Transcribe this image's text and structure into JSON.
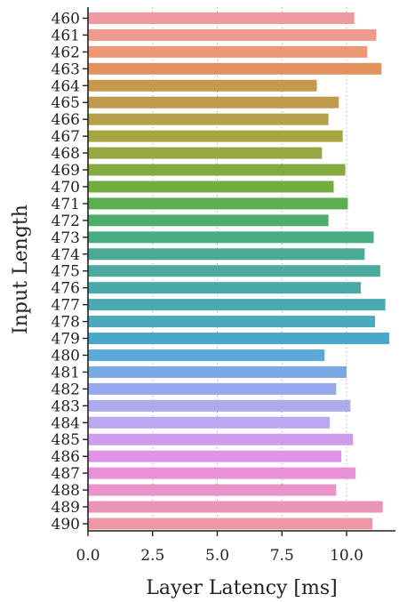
{
  "chart_data": {
    "type": "bar",
    "orientation": "horizontal",
    "xlabel": "Layer Latency [ms]",
    "ylabel": "Input Length",
    "xlim": [
      0,
      12
    ],
    "xticks": [
      "0.0",
      "2.5",
      "5.0",
      "7.5",
      "10.0"
    ],
    "xtick_values": [
      0,
      2.5,
      5,
      7.5,
      10
    ],
    "grid": "vertical",
    "categories": [
      "460",
      "461",
      "462",
      "463",
      "464",
      "465",
      "466",
      "467",
      "468",
      "469",
      "470",
      "471",
      "472",
      "473",
      "474",
      "475",
      "476",
      "477",
      "478",
      "479",
      "480",
      "481",
      "482",
      "483",
      "484",
      "485",
      "486",
      "487",
      "488",
      "489",
      "490"
    ],
    "values": [
      10.3,
      11.15,
      10.8,
      11.35,
      8.85,
      9.7,
      9.3,
      9.85,
      9.05,
      9.95,
      9.5,
      10.05,
      9.3,
      11.05,
      10.7,
      11.3,
      10.55,
      11.5,
      11.1,
      11.65,
      9.15,
      10.0,
      9.6,
      10.15,
      9.35,
      10.25,
      9.8,
      10.35,
      9.6,
      11.4,
      11.0
    ],
    "colors": [
      "#ef9aa0",
      "#ee9a8c",
      "#ec9877",
      "#e0935a",
      "#c7994a",
      "#c19b4d",
      "#b7a04a",
      "#a7a541",
      "#96a842",
      "#85ab40",
      "#72ad40",
      "#5cae50",
      "#4fad6c",
      "#4aac83",
      "#4aab92",
      "#4aaa9e",
      "#49a9a6",
      "#49aab2",
      "#4aa9bc",
      "#4aa7cc",
      "#5aaad9",
      "#7ba9e3",
      "#99a8ec",
      "#adaaee",
      "#bba6f0",
      "#cc9deb",
      "#df94e7",
      "#e891d9",
      "#e993c8",
      "#e996b6",
      "#ec98a6"
    ]
  }
}
